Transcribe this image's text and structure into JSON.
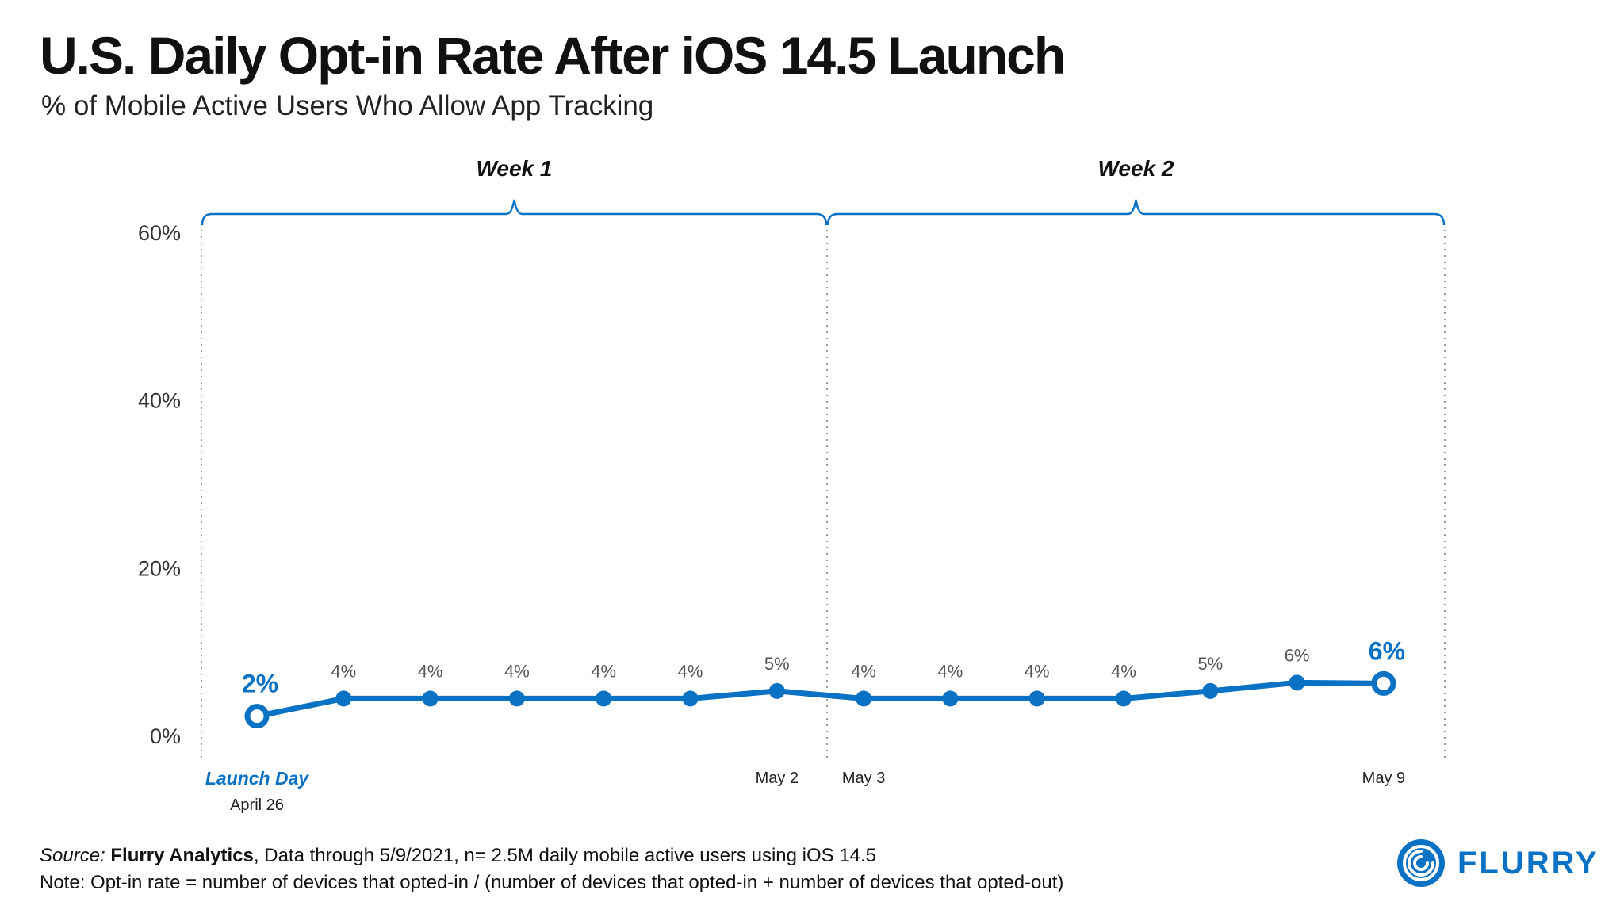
{
  "header": {
    "title": "U.S. Daily Opt-in Rate After iOS 14.5 Launch",
    "subtitle": "% of Mobile Active Users Who Allow App Tracking"
  },
  "footer": {
    "source_label": "Source:",
    "source_name": "Flurry Analytics",
    "source_rest": ", Data through 5/9/2021, n= 2.5M daily mobile active users using iOS 14.5",
    "note": "Note: Opt-in rate = number of devices that opted-in / (number of devices that opted-in + number of devices that opted-out)"
  },
  "logo": {
    "text": "FLURRY",
    "icon": "flurry-logo-icon"
  },
  "colors": {
    "accent": "#0a72c4",
    "text": "#111111",
    "label_gray": "#555555",
    "grid": "#9a9a9a"
  },
  "chart_data": {
    "type": "line",
    "title": "U.S. Daily Opt-in Rate After iOS 14.5 Launch",
    "subtitle": "% of Mobile Active Users Who Allow App Tracking",
    "xlabel": "",
    "ylabel": "",
    "ylim": [
      0,
      60
    ],
    "yticks": [
      "0%",
      "20%",
      "40%",
      "60%"
    ],
    "ytick_values": [
      0,
      20,
      40,
      60
    ],
    "grid": false,
    "series": [
      {
        "name": "Opt-in Rate",
        "values": [
          2.3,
          4.4,
          4.4,
          4.4,
          4.4,
          4.4,
          5.3,
          4.4,
          4.4,
          4.4,
          4.4,
          5.3,
          6.3,
          6.2
        ],
        "labels": [
          "2%",
          "4%",
          "4%",
          "4%",
          "4%",
          "4%",
          "5%",
          "4%",
          "4%",
          "4%",
          "4%",
          "5%",
          "6%",
          "6%"
        ]
      }
    ],
    "x_tick_labels": [
      {
        "index": 0,
        "text": "Launch Day",
        "subtext": "April 26"
      },
      {
        "index": 6,
        "text": "May 2"
      },
      {
        "index": 7,
        "text": "May 3"
      },
      {
        "index": 13,
        "text": "May 9"
      }
    ],
    "groups": [
      {
        "label": "Week 1",
        "start_index": 0,
        "end_index": 6
      },
      {
        "label": "Week 2",
        "start_index": 7,
        "end_index": 13
      }
    ],
    "highlight_indices": [
      0,
      13
    ]
  }
}
